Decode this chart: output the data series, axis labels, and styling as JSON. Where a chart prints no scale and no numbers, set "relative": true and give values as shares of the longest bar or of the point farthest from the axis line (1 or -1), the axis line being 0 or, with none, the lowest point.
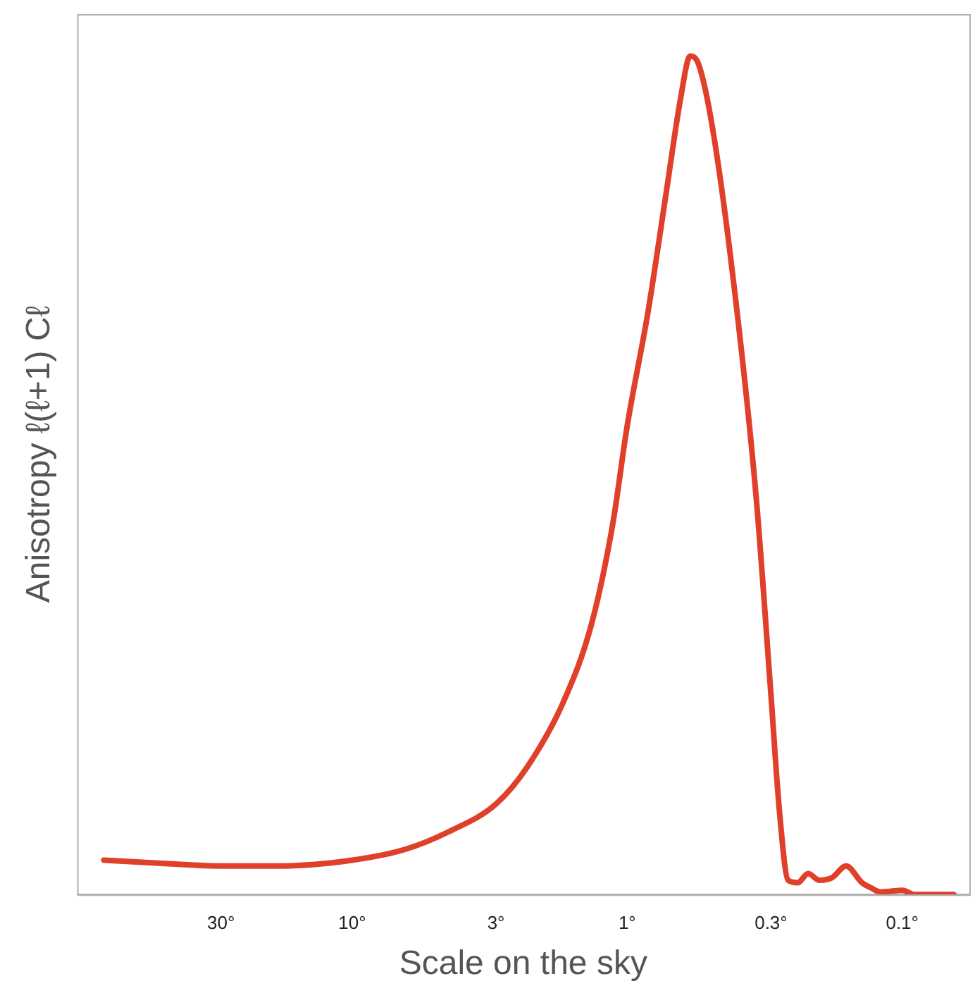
{
  "chart_data": {
    "type": "line",
    "xlabel": "Scale on the sky",
    "ylabel": "Anisotropy ℓ(ℓ+1) Cℓ",
    "relative": true,
    "log": "x",
    "x": [
      80,
      48,
      30,
      18.6,
      10,
      6.4,
      4.45,
      3,
      2.3,
      1.71,
      1.35,
      1.13,
      1,
      0.84,
      0.72,
      0.64,
      0.59,
      0.55,
      0.49,
      0.41,
      0.34,
      0.3,
      0.28,
      0.26,
      0.24,
      0.22,
      0.2,
      0.18,
      0.16,
      0.14,
      0.13,
      0.12,
      0.1,
      0.09,
      0.08,
      0.065
    ],
    "series": [
      {
        "color": "#e0402a",
        "values": [
          0.041,
          0.037,
          0.034,
          0.034,
          0.041,
          0.054,
          0.075,
          0.108,
          0.153,
          0.229,
          0.322,
          0.441,
          0.559,
          0.695,
          0.839,
          0.949,
          1,
          0.99,
          0.915,
          0.729,
          0.475,
          0.237,
          0.102,
          0.017,
          0.014,
          0.025,
          0.017,
          0.02,
          0.034,
          0.014,
          0.008,
          0.003,
          0.005,
          0,
          0,
          0
        ]
      }
    ],
    "xlim": [
      100,
      0.057
    ],
    "xticks": [
      {
        "value": 30,
        "label": "30°"
      },
      {
        "value": 10,
        "label": "10°"
      },
      {
        "value": 3,
        "label": "3°"
      },
      {
        "value": 1,
        "label": "1°"
      },
      {
        "value": 0.3,
        "label": "0.3°"
      },
      {
        "value": 0.1,
        "label": "0.1°"
      }
    ],
    "grid": false,
    "legend": false,
    "marker": "none",
    "line_style": "solid"
  }
}
